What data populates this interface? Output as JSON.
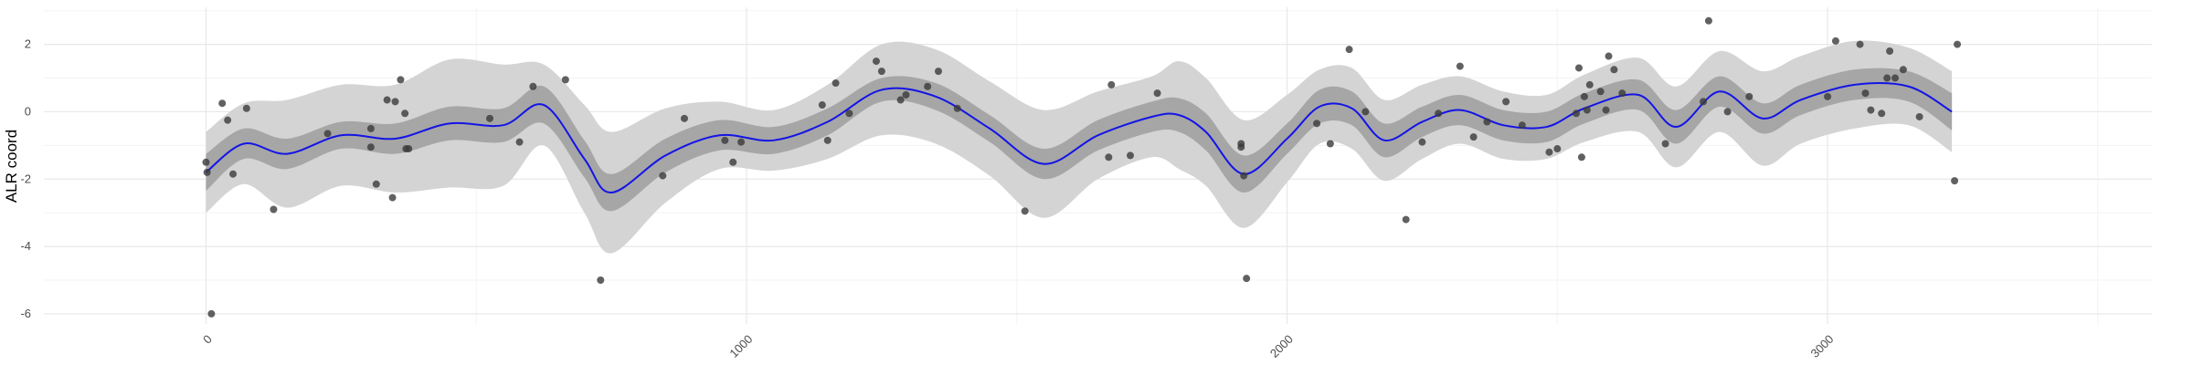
{
  "chart_data": {
    "type": "line",
    "title": "",
    "xlabel": "",
    "ylabel": "ALR coord",
    "xlim": [
      -300,
      3600
    ],
    "ylim": [
      -6.3,
      3.1
    ],
    "x_ticks": [
      0,
      1000,
      2000,
      3000
    ],
    "x_tick_labels": [
      "0",
      "1000",
      "2000",
      "3000"
    ],
    "y_ticks": [
      -6,
      -4,
      -2,
      0,
      2
    ],
    "y_tick_labels": [
      "-6",
      "-4",
      "-2",
      "0",
      "2"
    ],
    "grid": true,
    "legend": "none",
    "colors": {
      "line": "#1414e6",
      "inner_band": "#a6a6a6",
      "outer_band": "#d4d4d4",
      "points": "#3a3a3a",
      "grid_major": "#e8e8e8",
      "grid_minor": "#f3f3f3"
    },
    "fit": {
      "x": [
        0,
        70,
        150,
        250,
        350,
        450,
        550,
        625,
        700,
        750,
        850,
        950,
        1050,
        1150,
        1250,
        1350,
        1450,
        1550,
        1650,
        1750,
        1800,
        1850,
        1920,
        2000,
        2060,
        2120,
        2180,
        2250,
        2320,
        2400,
        2480,
        2550,
        2650,
        2720,
        2800,
        2880,
        2950,
        3050,
        3150,
        3230
      ],
      "y": [
        -1.8,
        -0.95,
        -1.25,
        -0.7,
        -0.8,
        -0.35,
        -0.4,
        0.2,
        -1.4,
        -2.4,
        -1.3,
        -0.7,
        -0.85,
        -0.3,
        0.65,
        0.45,
        -0.5,
        -1.55,
        -0.7,
        -0.15,
        -0.1,
        -0.6,
        -1.85,
        -0.8,
        0.15,
        0.1,
        -0.85,
        -0.3,
        0.05,
        -0.4,
        -0.45,
        0.1,
        0.5,
        -0.45,
        0.6,
        -0.2,
        0.35,
        0.8,
        0.75,
        0.0
      ],
      "inner": [
        0.55,
        0.45,
        0.45,
        0.4,
        0.45,
        0.5,
        0.5,
        0.55,
        0.55,
        0.55,
        0.5,
        0.45,
        0.4,
        0.4,
        0.35,
        0.4,
        0.4,
        0.45,
        0.45,
        0.45,
        0.5,
        0.55,
        0.55,
        0.45,
        0.5,
        0.5,
        0.5,
        0.45,
        0.45,
        0.45,
        0.45,
        0.45,
        0.45,
        0.5,
        0.45,
        0.45,
        0.45,
        0.45,
        0.45,
        0.55
      ],
      "outer": [
        1.2,
        1.2,
        1.6,
        1.5,
        1.6,
        1.9,
        1.8,
        1.2,
        1.6,
        1.8,
        1.4,
        1.0,
        0.9,
        1.1,
        1.35,
        1.4,
        1.4,
        1.6,
        1.3,
        1.2,
        1.6,
        1.6,
        1.6,
        1.3,
        1.1,
        1.2,
        1.2,
        1.1,
        1.0,
        1.0,
        0.95,
        1.0,
        1.1,
        1.2,
        1.2,
        1.4,
        1.3,
        1.3,
        1.15,
        1.2
      ]
    },
    "points": [
      [
        0,
        -1.5
      ],
      [
        2,
        -1.8
      ],
      [
        10,
        -6.0
      ],
      [
        30,
        0.25
      ],
      [
        40,
        -0.25
      ],
      [
        50,
        -1.85
      ],
      [
        75,
        0.1
      ],
      [
        125,
        -2.9
      ],
      [
        225,
        -0.65
      ],
      [
        305,
        -0.5
      ],
      [
        305,
        -1.05
      ],
      [
        315,
        -2.15
      ],
      [
        335,
        0.35
      ],
      [
        345,
        -2.55
      ],
      [
        350,
        0.3
      ],
      [
        360,
        0.95
      ],
      [
        368,
        -0.05
      ],
      [
        370,
        -1.1
      ],
      [
        375,
        -1.1
      ],
      [
        525,
        -0.2
      ],
      [
        580,
        -0.9
      ],
      [
        605,
        0.75
      ],
      [
        665,
        0.95
      ],
      [
        730,
        -5.0
      ],
      [
        845,
        -1.9
      ],
      [
        885,
        -0.2
      ],
      [
        960,
        -0.85
      ],
      [
        975,
        -1.5
      ],
      [
        990,
        -0.9
      ],
      [
        1140,
        0.2
      ],
      [
        1150,
        -0.85
      ],
      [
        1165,
        0.85
      ],
      [
        1190,
        -0.05
      ],
      [
        1240,
        1.5
      ],
      [
        1250,
        1.2
      ],
      [
        1285,
        0.35
      ],
      [
        1295,
        0.5
      ],
      [
        1335,
        0.75
      ],
      [
        1355,
        1.2
      ],
      [
        1390,
        0.1
      ],
      [
        1515,
        -2.95
      ],
      [
        1670,
        -1.35
      ],
      [
        1675,
        0.8
      ],
      [
        1710,
        -1.3
      ],
      [
        1760,
        0.55
      ],
      [
        1915,
        -0.95
      ],
      [
        1915,
        -1.05
      ],
      [
        1920,
        -1.9
      ],
      [
        1925,
        -4.95
      ],
      [
        2055,
        -0.35
      ],
      [
        2080,
        -0.95
      ],
      [
        2115,
        1.85
      ],
      [
        2145,
        0.0
      ],
      [
        2220,
        -3.2
      ],
      [
        2250,
        -0.9
      ],
      [
        2280,
        -0.05
      ],
      [
        2320,
        1.35
      ],
      [
        2345,
        -0.75
      ],
      [
        2370,
        -0.3
      ],
      [
        2405,
        0.3
      ],
      [
        2435,
        -0.4
      ],
      [
        2485,
        -1.2
      ],
      [
        2500,
        -1.1
      ],
      [
        2535,
        -0.05
      ],
      [
        2540,
        1.3
      ],
      [
        2545,
        -1.35
      ],
      [
        2550,
        0.45
      ],
      [
        2555,
        0.05
      ],
      [
        2560,
        0.8
      ],
      [
        2580,
        0.6
      ],
      [
        2590,
        0.05
      ],
      [
        2595,
        1.65
      ],
      [
        2605,
        1.25
      ],
      [
        2620,
        0.55
      ],
      [
        2700,
        -0.95
      ],
      [
        2770,
        0.3
      ],
      [
        2780,
        2.7
      ],
      [
        2815,
        0.0
      ],
      [
        2855,
        0.45
      ],
      [
        3000,
        0.45
      ],
      [
        3015,
        2.1
      ],
      [
        3060,
        2.0
      ],
      [
        3070,
        0.55
      ],
      [
        3080,
        0.05
      ],
      [
        3100,
        -0.05
      ],
      [
        3110,
        1.0
      ],
      [
        3115,
        1.8
      ],
      [
        3125,
        1.0
      ],
      [
        3140,
        1.25
      ],
      [
        3170,
        -0.15
      ],
      [
        3235,
        -2.05
      ],
      [
        3240,
        2.0
      ]
    ]
  }
}
